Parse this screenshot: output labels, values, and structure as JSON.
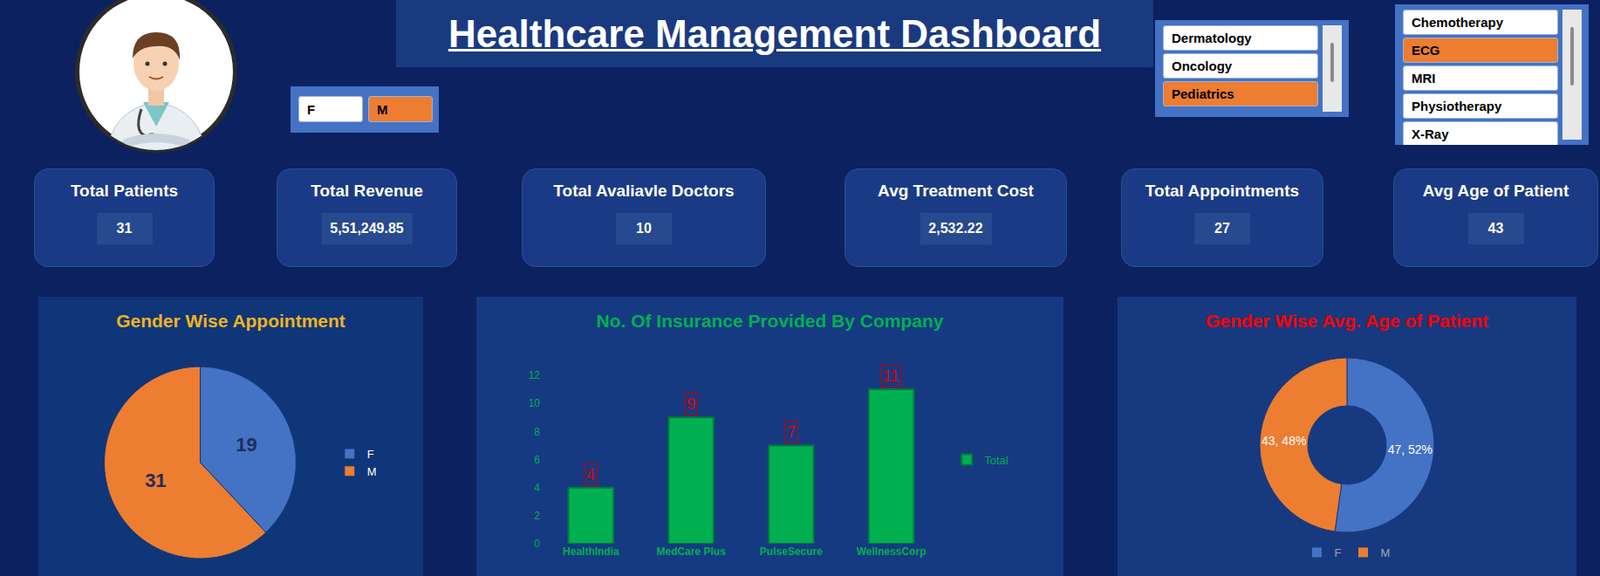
{
  "title": "Healthcare Management Dashboard",
  "slicers": [
    {
      "items": [
        "F",
        "M"
      ],
      "selected": [
        "M"
      ]
    },
    {
      "items": [
        "Dermatology",
        "Oncology",
        "Pediatrics"
      ],
      "selected": [
        "Pediatrics"
      ]
    },
    {
      "items": [
        "Chemotherapy",
        "ECG",
        "MRI",
        "Physiotherapy",
        "X-Ray"
      ],
      "selected": [
        "ECG"
      ]
    }
  ],
  "kpis": [
    {
      "label": "Total Patients",
      "value": "31"
    },
    {
      "label": "Total Revenue",
      "value": "5,51,249.85"
    },
    {
      "label": "Total Avaliavle Doctors",
      "value": "10"
    },
    {
      "label": "Avg Treatment Cost",
      "value": "2,532.22"
    },
    {
      "label": "Total Appointments",
      "value": "27"
    },
    {
      "label": "Avg Age of Patient",
      "value": "43"
    }
  ],
  "chart_data": [
    {
      "type": "pie",
      "title": "Gender Wise Appointment",
      "categories": [
        "F",
        "M"
      ],
      "values": [
        19,
        31
      ],
      "colors": [
        "#4472c4",
        "#ed7d31"
      ],
      "data_labels": true,
      "legend": "right"
    },
    {
      "type": "bar",
      "title": "No. Of Insurance Provided By Company",
      "categories": [
        "HealthIndia",
        "MedCare Plus",
        "PulseSecure",
        "WellnessCorp"
      ],
      "series": [
        {
          "name": "Total",
          "color": "#00b050",
          "values": [
            4,
            9,
            7,
            11
          ]
        }
      ],
      "ylim": [
        0,
        12
      ],
      "yticks": [
        0,
        2,
        4,
        6,
        8,
        10,
        12
      ],
      "grid": false,
      "data_labels": true,
      "legend": "right"
    },
    {
      "type": "donut",
      "title": "Gender Wise Avg. Age of Patient",
      "categories": [
        "F",
        "M"
      ],
      "values": [
        47,
        43
      ],
      "value_labels": [
        "47, 52%",
        "43, 48%"
      ],
      "colors": [
        "#4472c4",
        "#ed7d31"
      ],
      "data_labels": true,
      "legend": "bottom"
    }
  ]
}
